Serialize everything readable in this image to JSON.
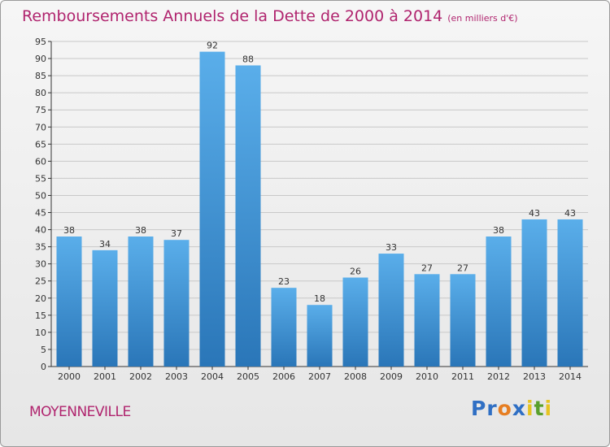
{
  "header": {
    "title": "Remboursements Annuels de la Dette de 2000 à 2014",
    "subtitle": "(en milliers d'€)"
  },
  "footer": {
    "commune": "MOYENNEVILLE",
    "logo_letters": [
      {
        "ch": "P",
        "color": "#2f6fc4"
      },
      {
        "ch": "r",
        "color": "#2f6fc4"
      },
      {
        "ch": "o",
        "color": "#e67e22"
      },
      {
        "ch": "x",
        "color": "#2f6fc4"
      },
      {
        "ch": "i",
        "color": "#e6c422"
      },
      {
        "ch": "t",
        "color": "#5aa02c"
      },
      {
        "ch": "i",
        "color": "#e6c422"
      }
    ]
  },
  "colors": {
    "bar_top": "#5aaeea",
    "bar_bottom": "#2a76b8",
    "title": "#b0246e",
    "grid": "#c8c8c8"
  },
  "chart_data": {
    "type": "bar",
    "categories": [
      "2000",
      "2001",
      "2002",
      "2003",
      "2004",
      "2005",
      "2006",
      "2007",
      "2008",
      "2009",
      "2010",
      "2011",
      "2012",
      "2013",
      "2014"
    ],
    "values": [
      38,
      34,
      38,
      37,
      92,
      88,
      23,
      18,
      26,
      33,
      27,
      27,
      38,
      43,
      43
    ],
    "ylim": [
      0,
      95
    ],
    "yticks": [
      0,
      5,
      10,
      15,
      20,
      25,
      30,
      35,
      40,
      45,
      50,
      55,
      60,
      65,
      70,
      75,
      80,
      85,
      90,
      95
    ],
    "grid": true,
    "data_labels": true
  }
}
